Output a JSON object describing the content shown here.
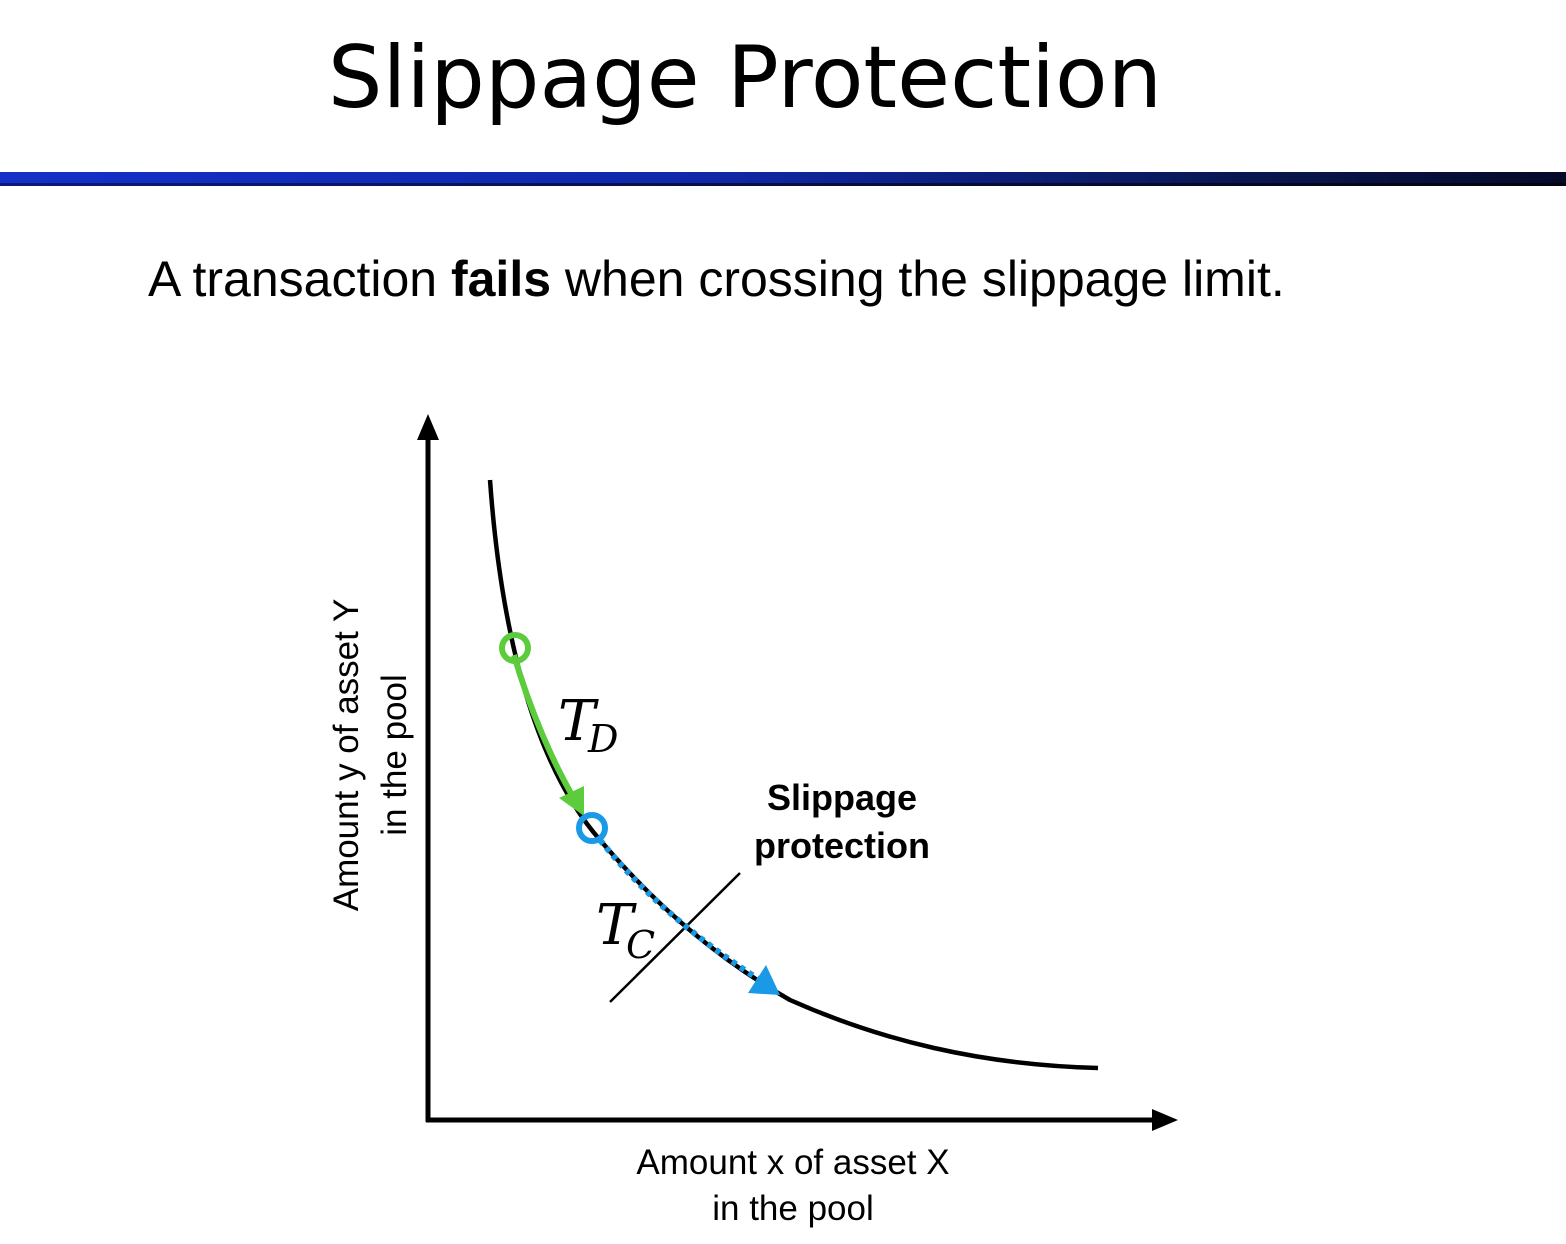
{
  "slide": {
    "title": "Slippage Protection",
    "lead_before": "A transaction ",
    "lead_bold": "fails",
    "lead_after": " when crossing the slippage limit."
  },
  "diagram": {
    "x_axis_label_line1": "Amount x of asset X",
    "x_axis_label_line2": "in the pool",
    "y_axis_label_line1": "Amount y of asset Y",
    "y_axis_label_line2": "in the pool",
    "transaction_d": {
      "symbol": "T",
      "subscript": "D"
    },
    "transaction_c": {
      "symbol": "T",
      "subscript": "C"
    },
    "limit_label_line1": "Slippage",
    "limit_label_line2": "protection",
    "colors": {
      "curve": "#000000",
      "transaction_d": "#5ccc3c",
      "transaction_c": "#1a9ae6",
      "axes": "#000000"
    }
  }
}
